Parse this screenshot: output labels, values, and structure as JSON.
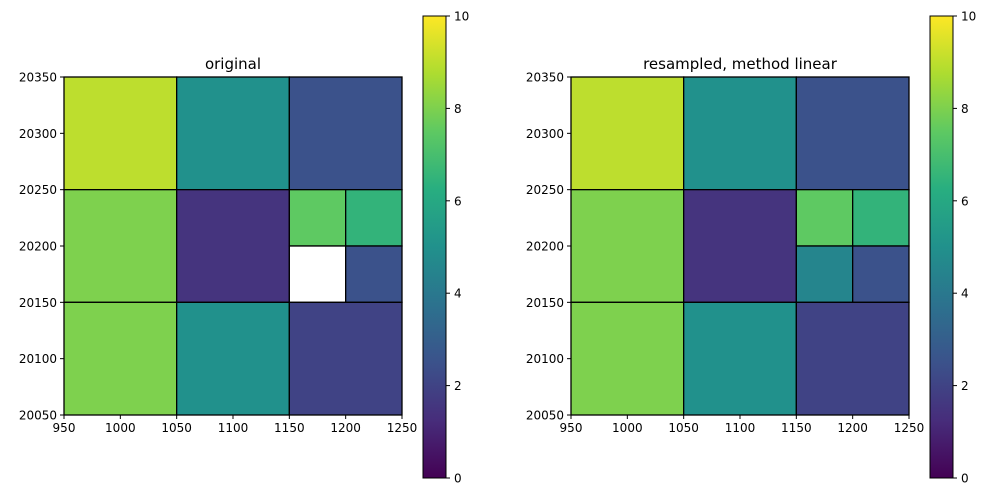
{
  "chart_data": [
    {
      "type": "heatmap",
      "title": "original",
      "xlim": [
        950,
        1250
      ],
      "ylim": [
        20050,
        20350
      ],
      "xticks": [
        950,
        1000,
        1050,
        1100,
        1150,
        1200,
        1250
      ],
      "yticks": [
        20050,
        20100,
        20150,
        20200,
        20250,
        20300,
        20350
      ],
      "color_range": [
        0,
        10
      ],
      "colormap": "viridis",
      "cells": [
        {
          "x": [
            950,
            1050
          ],
          "y": [
            20250,
            20350
          ],
          "value": 9.0
        },
        {
          "x": [
            1050,
            1150
          ],
          "y": [
            20250,
            20350
          ],
          "value": 5.0
        },
        {
          "x": [
            1150,
            1250
          ],
          "y": [
            20250,
            20350
          ],
          "value": 2.5
        },
        {
          "x": [
            950,
            1050
          ],
          "y": [
            20150,
            20250
          ],
          "value": 8.0
        },
        {
          "x": [
            1050,
            1150
          ],
          "y": [
            20150,
            20250
          ],
          "value": 1.5
        },
        {
          "x": [
            1150,
            1200
          ],
          "y": [
            20200,
            20250
          ],
          "value": 7.5
        },
        {
          "x": [
            1200,
            1250
          ],
          "y": [
            20200,
            20250
          ],
          "value": 6.5
        },
        {
          "x": [
            1150,
            1200
          ],
          "y": [
            20150,
            20200
          ],
          "value": null
        },
        {
          "x": [
            1200,
            1250
          ],
          "y": [
            20150,
            20200
          ],
          "value": 2.5
        },
        {
          "x": [
            950,
            1050
          ],
          "y": [
            20050,
            20150
          ],
          "value": 8.0
        },
        {
          "x": [
            1050,
            1150
          ],
          "y": [
            20050,
            20150
          ],
          "value": 5.0
        },
        {
          "x": [
            1150,
            1250
          ],
          "y": [
            20050,
            20150
          ],
          "value": 2.0
        }
      ],
      "grid": false
    },
    {
      "type": "heatmap",
      "title": "resampled, method linear",
      "xlim": [
        950,
        1250
      ],
      "ylim": [
        20050,
        20350
      ],
      "xticks": [
        950,
        1000,
        1050,
        1100,
        1150,
        1200,
        1250
      ],
      "yticks": [
        20050,
        20100,
        20150,
        20200,
        20250,
        20300,
        20350
      ],
      "color_range": [
        0,
        10
      ],
      "colormap": "viridis",
      "cells": [
        {
          "x": [
            950,
            1050
          ],
          "y": [
            20250,
            20350
          ],
          "value": 9.0
        },
        {
          "x": [
            1050,
            1150
          ],
          "y": [
            20250,
            20350
          ],
          "value": 5.0
        },
        {
          "x": [
            1150,
            1250
          ],
          "y": [
            20250,
            20350
          ],
          "value": 2.5
        },
        {
          "x": [
            950,
            1050
          ],
          "y": [
            20150,
            20250
          ],
          "value": 8.0
        },
        {
          "x": [
            1050,
            1150
          ],
          "y": [
            20150,
            20250
          ],
          "value": 1.5
        },
        {
          "x": [
            1150,
            1200
          ],
          "y": [
            20200,
            20250
          ],
          "value": 7.5
        },
        {
          "x": [
            1200,
            1250
          ],
          "y": [
            20200,
            20250
          ],
          "value": 6.5
        },
        {
          "x": [
            1150,
            1200
          ],
          "y": [
            20150,
            20200
          ],
          "value": 4.5
        },
        {
          "x": [
            1200,
            1250
          ],
          "y": [
            20150,
            20200
          ],
          "value": 2.5
        },
        {
          "x": [
            950,
            1050
          ],
          "y": [
            20050,
            20150
          ],
          "value": 8.0
        },
        {
          "x": [
            1050,
            1150
          ],
          "y": [
            20050,
            20150
          ],
          "value": 5.0
        },
        {
          "x": [
            1150,
            1250
          ],
          "y": [
            20050,
            20150
          ],
          "value": 2.0
        }
      ],
      "grid": false
    }
  ],
  "colorbars": [
    {
      "ticks": [
        0,
        2,
        4,
        6,
        8,
        10
      ],
      "range": [
        0,
        10
      ]
    },
    {
      "ticks": [
        0,
        2,
        4,
        6,
        8,
        10
      ],
      "range": [
        0,
        10
      ]
    }
  ]
}
